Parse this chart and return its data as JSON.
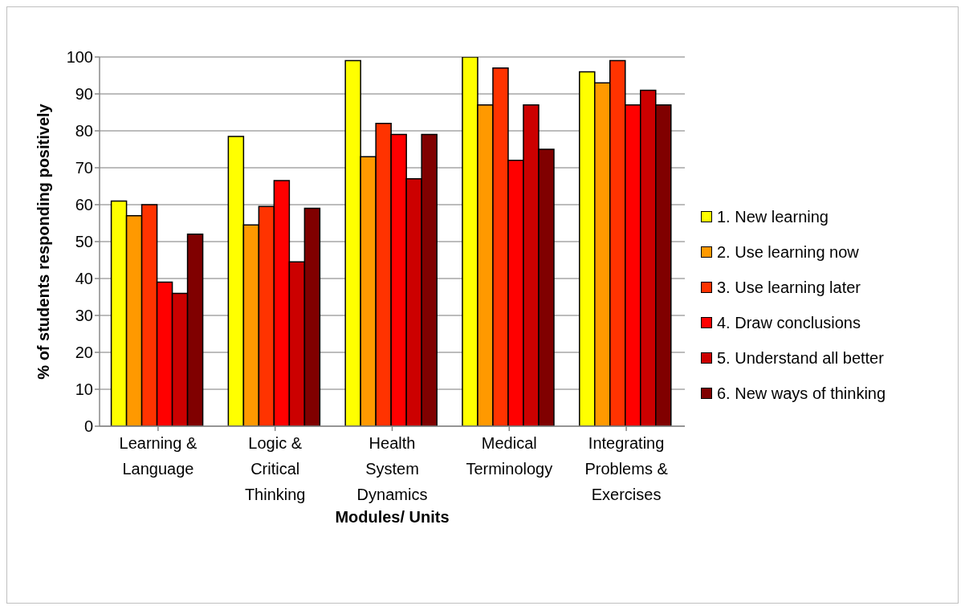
{
  "chart_data": {
    "type": "bar",
    "xlabel": "Modules/ Units",
    "ylabel": "% of students responding positively",
    "categories": [
      "Learning & Language",
      "Logic & Critical Thinking",
      "Health System Dynamics",
      "Medical Terminology",
      "Integrating Problems & Exercises"
    ],
    "series": [
      {
        "name": "1. New learning",
        "color": "#ffff00",
        "values": [
          61,
          78.5,
          99,
          100,
          96
        ]
      },
      {
        "name": "2. Use learning now",
        "color": "#ff9900",
        "values": [
          57,
          54.5,
          73,
          87,
          93
        ]
      },
      {
        "name": "3. Use learning later",
        "color": "#ff3300",
        "values": [
          60,
          59.5,
          82,
          97,
          99
        ]
      },
      {
        "name": "4. Draw conclusions",
        "color": "#ff0000",
        "values": [
          39,
          66.5,
          79,
          72,
          87
        ]
      },
      {
        "name": "5. Understand all better",
        "color": "#cc0000",
        "values": [
          36,
          44.5,
          67,
          87,
          91
        ]
      },
      {
        "name": "6. New ways of thinking",
        "color": "#800000",
        "values": [
          52,
          59,
          79,
          75,
          87
        ]
      }
    ],
    "ylim": [
      0,
      100
    ],
    "yticks": [
      0,
      10,
      20,
      30,
      40,
      50,
      60,
      70,
      80,
      90,
      100
    ],
    "grid": "y",
    "legend": "right"
  }
}
